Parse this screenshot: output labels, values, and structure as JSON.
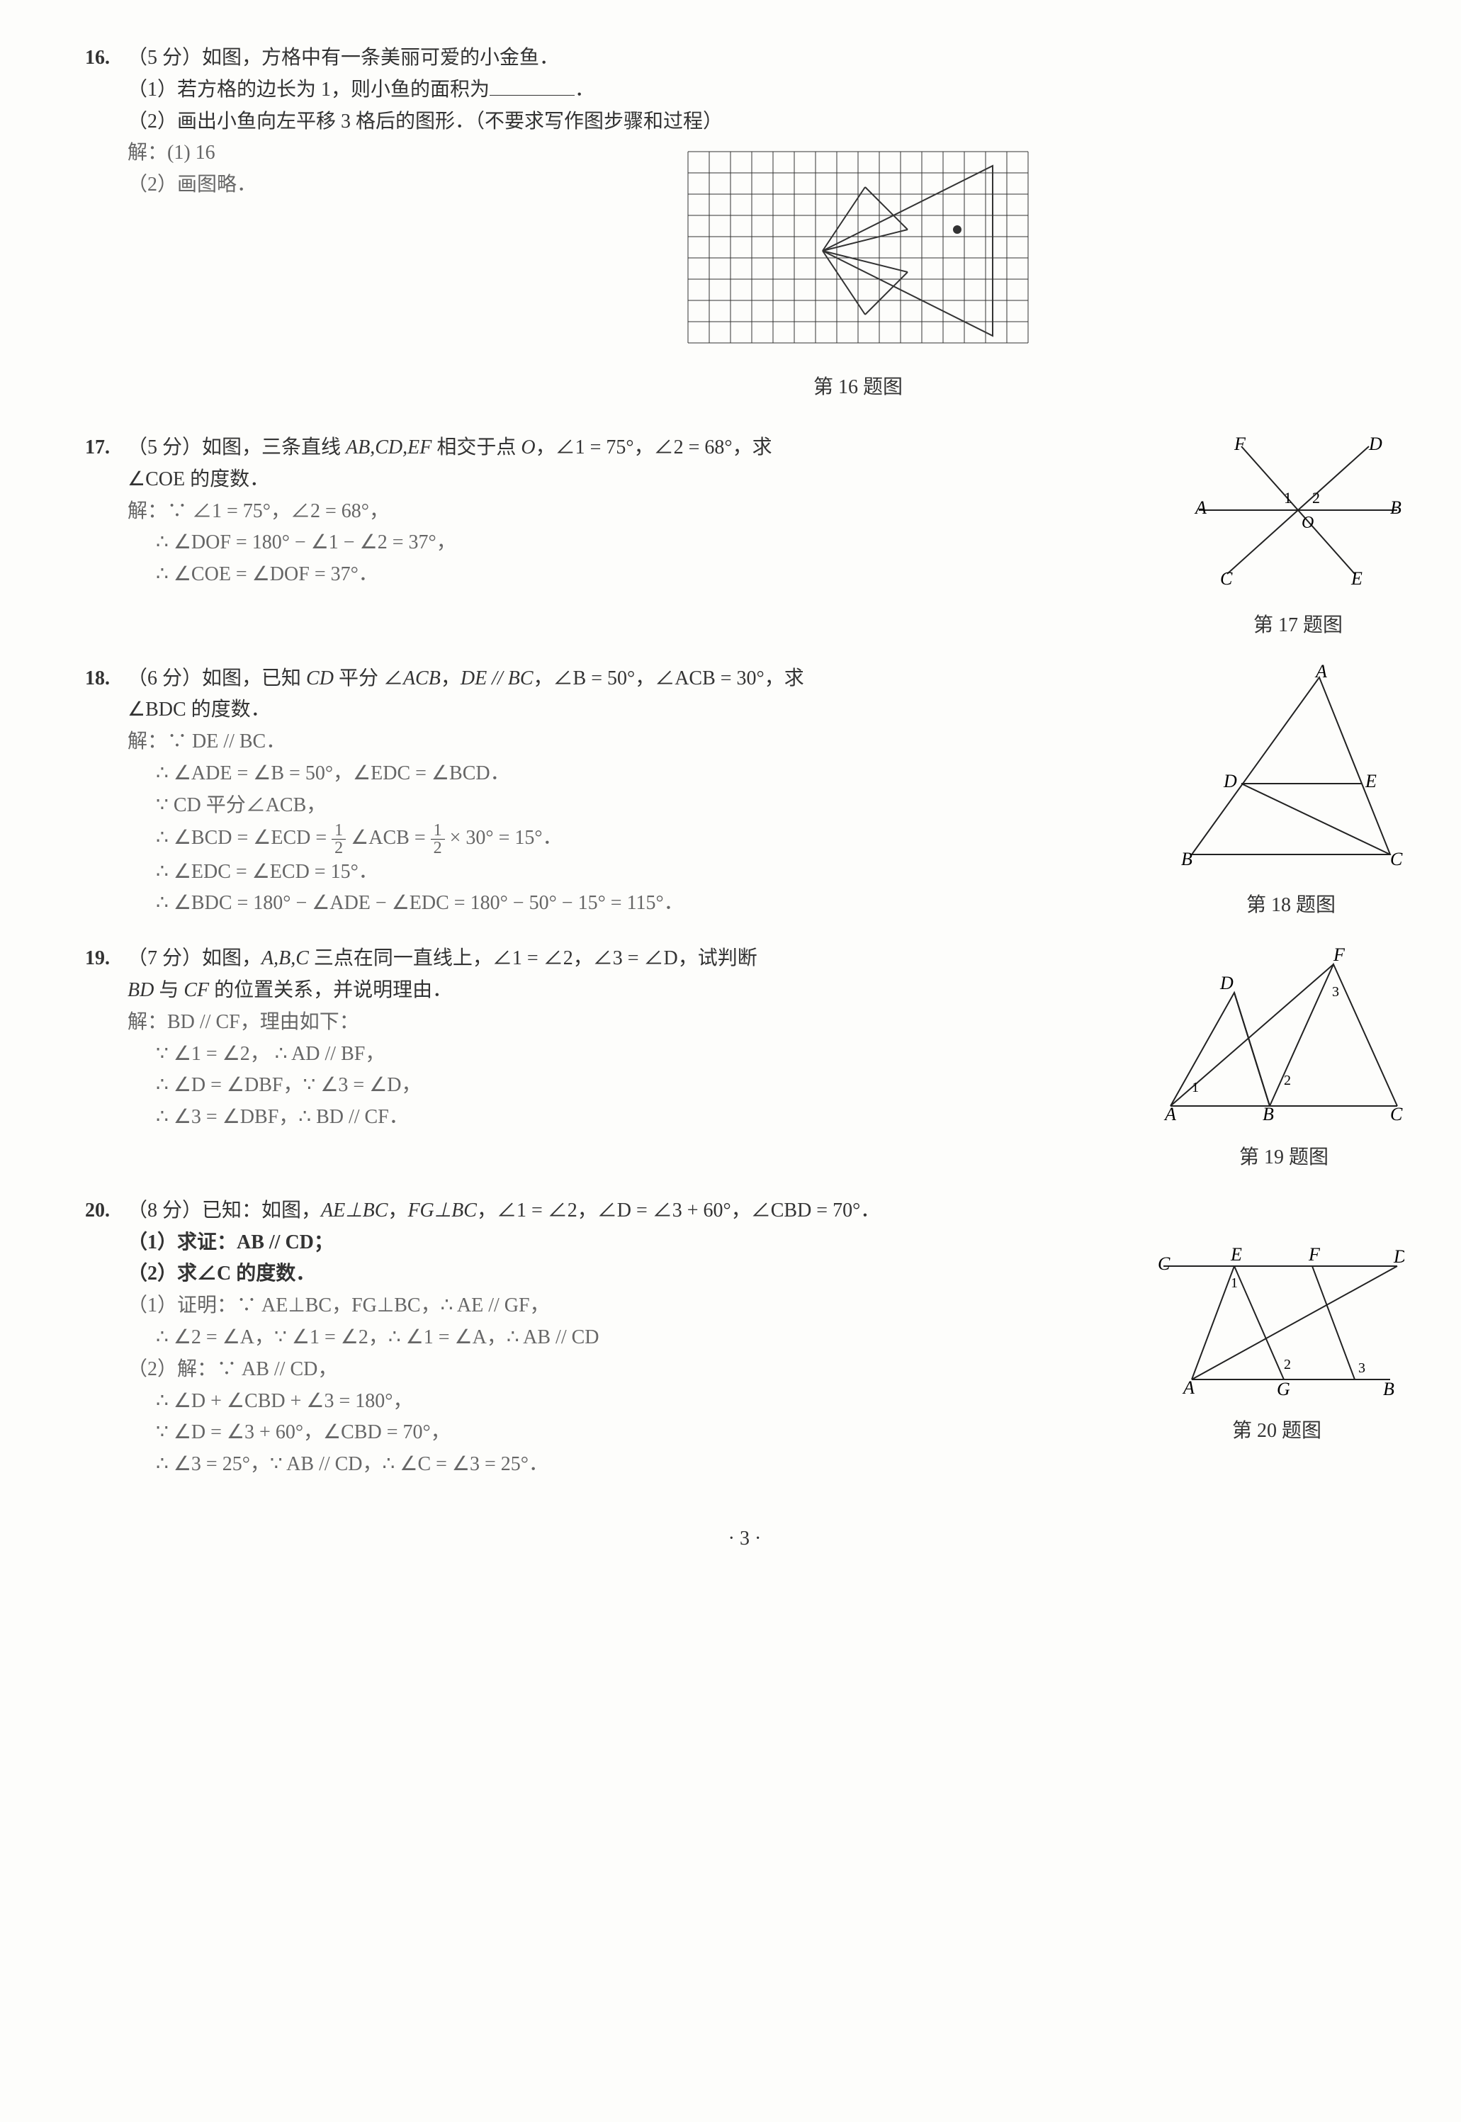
{
  "page_number": "· 3 ·",
  "q16": {
    "num": "16.",
    "points": "（5 分）",
    "stem": "如图，方格中有一条美丽可爱的小金鱼．",
    "part1": "（1）若方格的边长为 1，则小鱼的面积为",
    "part1_end": "．",
    "part2": "（2）画出小鱼向左平移 3 格后的图形．（不要求写作图步骤和过程）",
    "sol1": "解：(1) 16",
    "sol2": "（2）画图略．",
    "caption": "第 16 题图",
    "grid": {
      "cols": 16,
      "rows": 9,
      "cell": 30,
      "stroke": "#333"
    }
  },
  "q17": {
    "num": "17.",
    "points": "（5 分）",
    "stem_a": "如图，三条直线 ",
    "stem_b": "AB,CD,EF",
    "stem_c": " 相交于点 ",
    "stem_d": "O",
    "stem_e": "，∠1 = 75°，∠2 = 68°，求",
    "stem2": "∠COE 的度数．",
    "sol1": "解：∵ ∠1 = 75°，∠2 = 68°，",
    "sol2": "∴ ∠DOF = 180° − ∠1 − ∠2 = 37°，",
    "sol3": "∴ ∠COE = ∠DOF = 37°．",
    "caption": "第 17 题图",
    "labels": {
      "A": "A",
      "B": "B",
      "C": "C",
      "D": "D",
      "E": "E",
      "F": "F",
      "O": "O",
      "a1": "1",
      "a2": "2"
    }
  },
  "q18": {
    "num": "18.",
    "points": "（6 分）",
    "stem_a": "如图，已知 ",
    "stem_b": "CD",
    "stem_c": " 平分 ∠",
    "stem_d": "ACB",
    "stem_e": "，",
    "stem_f": "DE // BC",
    "stem_g": "，∠B = 50°，∠ACB = 30°，求",
    "stem2": "∠BDC 的度数．",
    "sol1": "解：∵ DE // BC．",
    "sol2": "∴ ∠ADE = ∠B = 50°，∠EDC = ∠BCD．",
    "sol3": "∵ CD 平分∠ACB，",
    "sol4a": "∴ ∠BCD = ∠ECD = ",
    "sol4b": " ∠ACB = ",
    "sol4c": " × 30° = 15°．",
    "sol5": "∴ ∠EDC = ∠ECD = 15°．",
    "sol6": "∴ ∠BDC = 180° − ∠ADE − ∠EDC = 180° − 50° − 15° = 115°．",
    "caption": "第 18 题图",
    "labels": {
      "A": "A",
      "B": "B",
      "C": "C",
      "D": "D",
      "E": "E"
    }
  },
  "q19": {
    "num": "19.",
    "points": "（7 分）",
    "stem_a": "如图，",
    "stem_b": "A,B,C",
    "stem_c": " 三点在同一直线上，∠1 = ∠2，∠3 = ∠D，试判断",
    "stem2_a": "BD",
    "stem2_b": " 与 ",
    "stem2_c": "CF",
    "stem2_d": " 的位置关系，并说明理由．",
    "sol1": "解：BD // CF，理由如下：",
    "sol2": "∵ ∠1 = ∠2，  ∴ AD // BF，",
    "sol3": "∴ ∠D = ∠DBF，∵ ∠3 = ∠D，",
    "sol4": "∴ ∠3 = ∠DBF，∴ BD // CF．",
    "caption": "第 19 题图",
    "labels": {
      "A": "A",
      "B": "B",
      "C": "C",
      "D": "D",
      "F": "F",
      "a1": "1",
      "a2": "2",
      "a3": "3"
    }
  },
  "q20": {
    "num": "20.",
    "points": "（8 分）",
    "stem_a": "已知：如图，",
    "stem_b": "AE⊥BC",
    "stem_c": "，",
    "stem_d": "FG⊥BC",
    "stem_e": "，∠1 = ∠2，∠D = ∠3 + 60°，∠CBD = 70°．",
    "part1": "（1）求证：AB // CD；",
    "part2": "（2）求∠C 的度数．",
    "sol1": "（1）证明：∵ AE⊥BC，FG⊥BC，∴ AE // GF，",
    "sol2": "∴ ∠2 = ∠A，∵ ∠1 = ∠2，∴ ∠1 = ∠A，∴ AB // CD",
    "sol3": "（2）解：∵ AB // CD，",
    "sol4": "∴ ∠D + ∠CBD + ∠3 = 180°，",
    "sol5": "∵ ∠D = ∠3 + 60°，∠CBD = 70°，",
    "sol6": "∴ ∠3 = 25°，∵ AB // CD，∴ ∠C = ∠3 = 25°．",
    "caption": "第 20 题图",
    "labels": {
      "A": "A",
      "B": "B",
      "C": "C",
      "D": "D",
      "E": "E",
      "F": "F",
      "G": "G",
      "a1": "1",
      "a2": "2",
      "a3": "3"
    }
  }
}
